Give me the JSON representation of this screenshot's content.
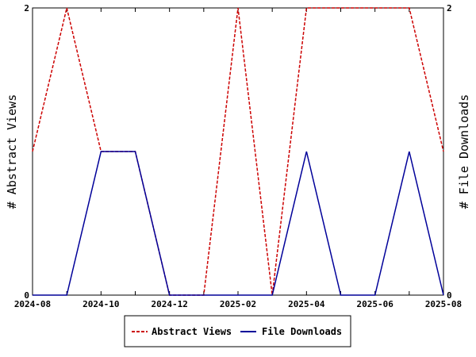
{
  "chart_data": {
    "type": "line",
    "x_dates": [
      "2024-08",
      "2024-09",
      "2024-10",
      "2024-11",
      "2024-12",
      "2025-01",
      "2025-02",
      "2025-03",
      "2025-04",
      "2025-05",
      "2025-06",
      "2025-07",
      "2025-08"
    ],
    "x_tick_labels": [
      "2024-08",
      "2024-10",
      "2024-12",
      "2025-02",
      "2025-04",
      "2025-06",
      "2025-08"
    ],
    "ylabel_left": "# Abstract Views",
    "ylabel_right": "# File Downloads",
    "ylim_left": [
      0,
      2
    ],
    "ylim_right": [
      0,
      2
    ],
    "y_ticks_left": [
      "0",
      "2"
    ],
    "y_ticks_right": [
      "0",
      "2"
    ],
    "grid": false,
    "legend_position": "bottom-center",
    "series": [
      {
        "name": "Abstract Views",
        "color": "#cc0000",
        "dash": "dashed",
        "axis": "left",
        "values": [
          1,
          2,
          1,
          1,
          0,
          0,
          2,
          0,
          2,
          2,
          2,
          2,
          1
        ]
      },
      {
        "name": "File Downloads",
        "color": "#000099",
        "dash": "solid",
        "axis": "right",
        "values": [
          0,
          0,
          1,
          1,
          0,
          0,
          0,
          0,
          1,
          0,
          0,
          1,
          0
        ]
      }
    ]
  }
}
